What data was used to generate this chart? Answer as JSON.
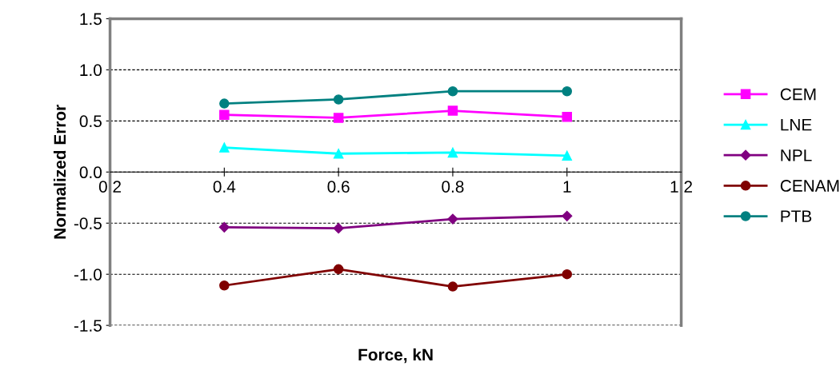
{
  "chart_data": {
    "type": "line",
    "xlabel": "Force, kN",
    "ylabel": "Normalized Error",
    "x": [
      0.4,
      0.6,
      0.8,
      1.0
    ],
    "series": [
      {
        "name": "CEM",
        "color": "#ff00ff",
        "marker": "square",
        "values": [
          0.56,
          0.53,
          0.6,
          0.54
        ]
      },
      {
        "name": "LNE",
        "color": "#00ffff",
        "marker": "triangle",
        "values": [
          0.24,
          0.18,
          0.19,
          0.16
        ]
      },
      {
        "name": "NPL",
        "color": "#800080",
        "marker": "diamond",
        "values": [
          -0.54,
          -0.55,
          -0.46,
          -0.43
        ]
      },
      {
        "name": "CENAM",
        "color": "#800000",
        "marker": "circle",
        "values": [
          -1.11,
          -0.95,
          -1.12,
          -1.0
        ]
      },
      {
        "name": "PTB",
        "color": "#008080",
        "marker": "circle",
        "values": [
          0.67,
          0.71,
          0.79,
          0.79
        ]
      }
    ],
    "xlim": [
      0.2,
      1.2
    ],
    "xticks": [
      0.2,
      0.4,
      0.6,
      0.8,
      {
        "value": 1.0,
        "label": "1"
      },
      1.2
    ],
    "ylim": [
      -1.5,
      1.5
    ],
    "yticks": [
      -1.5,
      {
        "value": -1.0,
        "label": "-1.0"
      },
      -0.5,
      {
        "value": 0.0,
        "label": "0.0"
      },
      0.5,
      {
        "value": 1.0,
        "label": "1.0"
      },
      1.5
    ],
    "grid": "y",
    "legend": "right"
  }
}
